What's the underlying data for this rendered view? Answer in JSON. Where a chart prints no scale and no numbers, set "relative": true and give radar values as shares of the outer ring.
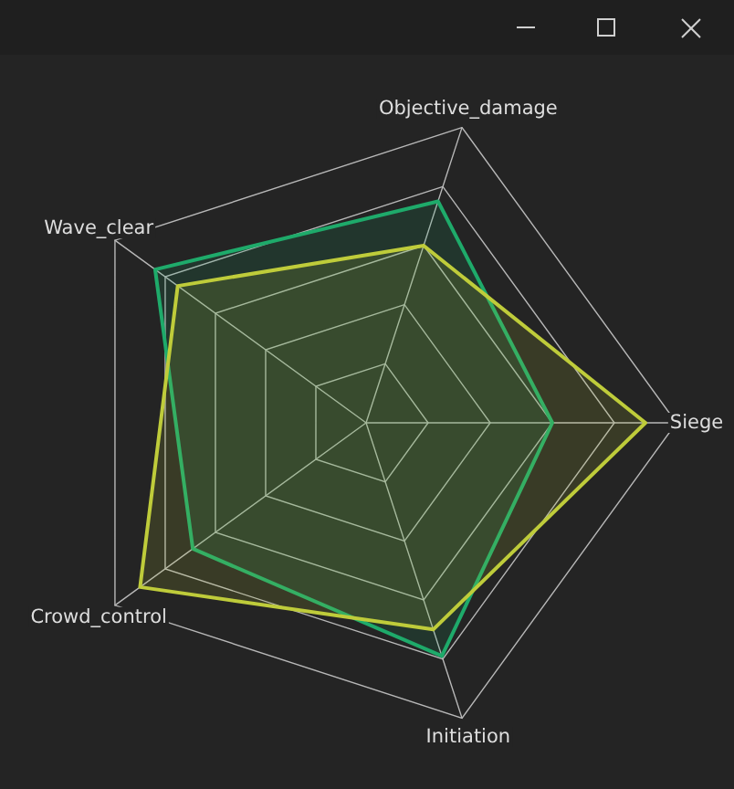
{
  "chart_data": {
    "type": "radar",
    "relative": true,
    "categories": [
      "Objective_damage",
      "Siege",
      "Initiation",
      "Crowd_control",
      "Wave_clear"
    ],
    "series": [
      {
        "color": "#1fab6b",
        "values": [
          0.75,
          0.6,
          0.79,
          0.69,
          0.84
        ]
      },
      {
        "color": "#bfcc3b",
        "values": [
          0.6,
          0.9,
          0.7,
          0.9,
          0.75
        ]
      }
    ],
    "grid": true,
    "marker": "none"
  }
}
